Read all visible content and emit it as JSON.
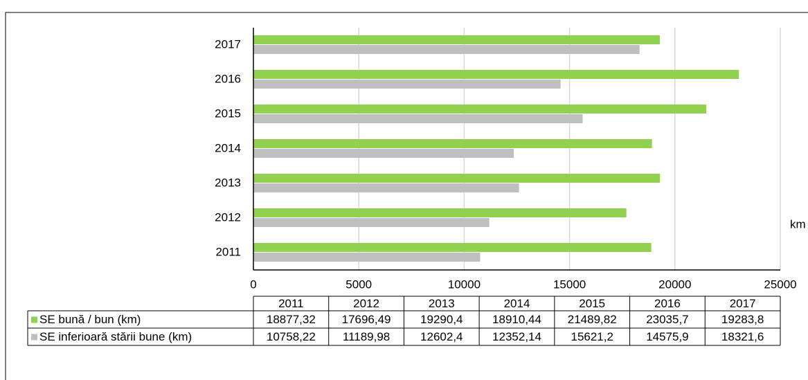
{
  "chart_data": {
    "type": "barh",
    "x_label": "km",
    "categories": [
      "2011",
      "2012",
      "2013",
      "2014",
      "2015",
      "2016",
      "2017"
    ],
    "series": [
      {
        "name": "SE bună / bun (km)",
        "color": "#92d050",
        "values": [
          18877.32,
          17696.49,
          19290.4,
          18910.44,
          21489.82,
          23035.7,
          19283.8
        ],
        "value_labels": [
          "18877,32",
          "17696,49",
          "19290,4",
          "18910,44",
          "21489,82",
          "23035,7",
          "19283,8"
        ]
      },
      {
        "name": "SE inferioară stării bune (km)",
        "color": "#bfbfbf",
        "values": [
          10758.22,
          11189.98,
          12602.4,
          12352.14,
          15621.2,
          14575.9,
          18321.6
        ],
        "value_labels": [
          "10758,22",
          "11189,98",
          "12602,4",
          "12352,14",
          "15621,2",
          "14575,9",
          "18321,6"
        ]
      }
    ],
    "xlim": [
      0,
      25000
    ],
    "xticks": [
      0,
      5000,
      10000,
      15000,
      20000,
      25000
    ],
    "grid": true
  }
}
